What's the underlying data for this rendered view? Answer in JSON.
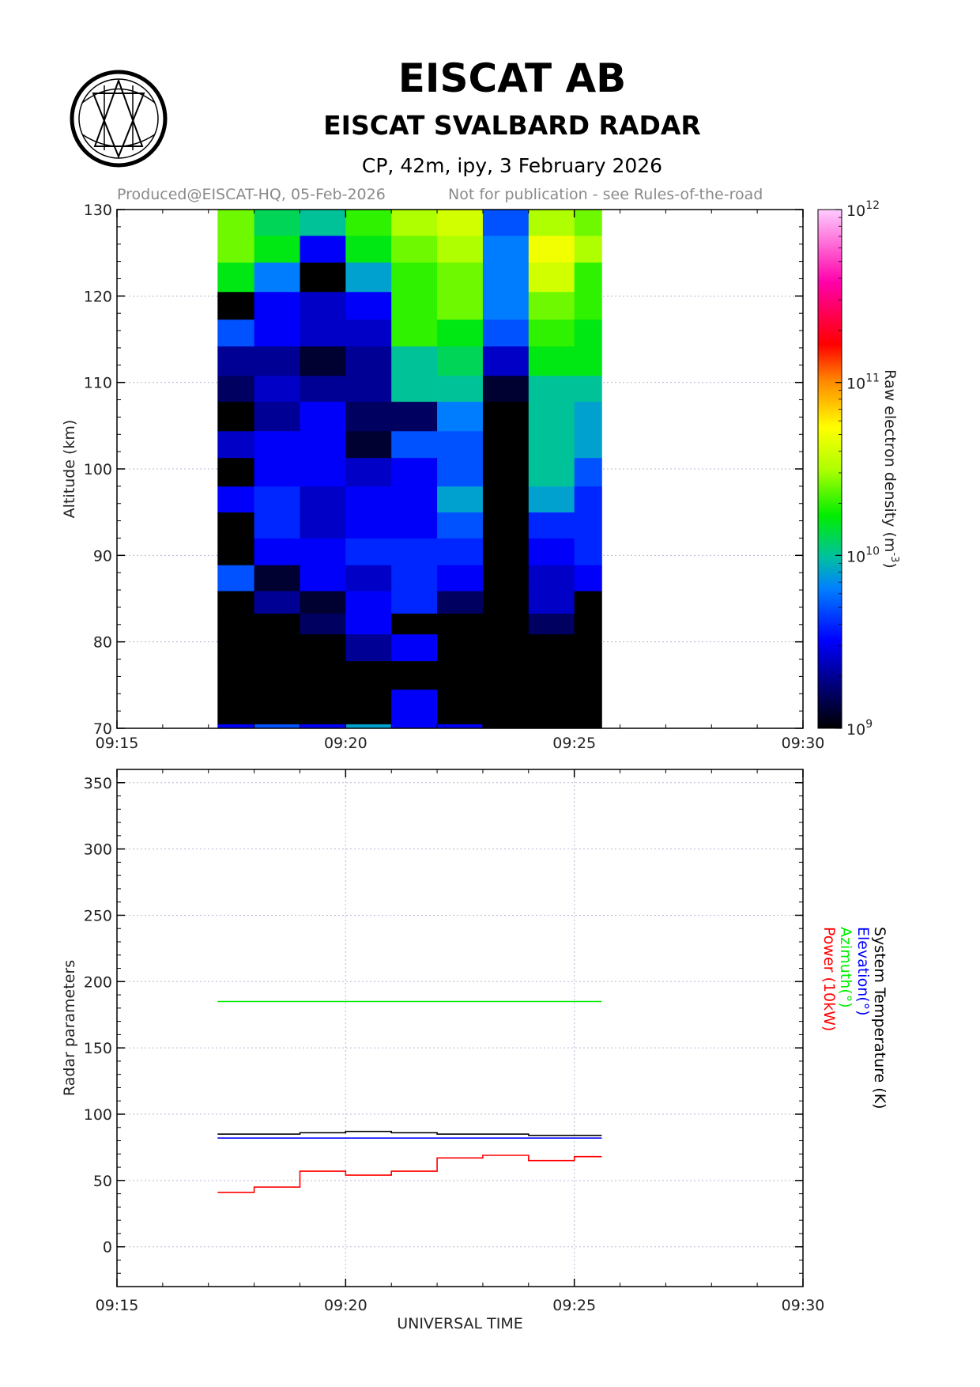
{
  "header": {
    "org": "EISCAT AB",
    "radar": "EISCAT SVALBARD RADAR",
    "subtitle": "CP, 42m, ipy, 3 February 2026",
    "produced": "Produced@EISCAT-HQ, 05-Feb-2026",
    "notice": "Not for publication - see Rules-of-the-road"
  },
  "colors": {
    "frame": "#000000",
    "grid": "#b8b8d8",
    "sys_temp": "#000000",
    "elevation": "#0000ff",
    "azimuth": "#00ee00",
    "power": "#ff0000"
  },
  "chart_data": [
    {
      "type": "heatmap",
      "x_ticks": [
        "09:15",
        "09:20",
        "09:25",
        "09:30"
      ],
      "xlim": [
        "09:15",
        "09:30"
      ],
      "ylabel": "Altitude (km)",
      "ylim": [
        70,
        130
      ],
      "y_ticks": [
        70,
        80,
        90,
        100,
        110,
        120,
        130
      ],
      "colorbar": {
        "label_main": "Raw electron density (m",
        "label_exp": "-3",
        "label_close": ")",
        "scale": "log",
        "range": [
          1000000000.0,
          1000000000000.0
        ],
        "tick_base": "10",
        "tick_exps": [
          "9",
          "10",
          "11",
          "12"
        ],
        "tick_log": [
          9,
          10,
          11,
          12
        ]
      },
      "time_edges": [
        "09:17:12",
        "09:18:00",
        "09:19:00",
        "09:20:00",
        "09:21:00",
        "09:22:00",
        "09:23:00",
        "09:24:00",
        "09:25:00",
        "09:25:36"
      ],
      "altitude_edges_km": [
        70,
        70.5,
        74.5,
        77.8,
        80.9,
        83.3,
        85.9,
        88.9,
        92,
        95,
        98,
        101.3,
        104.4,
        107.8,
        110.8,
        114.2,
        117.3,
        120.5,
        123.9,
        127,
        130
      ],
      "log10_density": [
        [
          9.5,
          9.0,
          9.0,
          9.0,
          9.0,
          9.0,
          9.7,
          9.0,
          9.0,
          9.5,
          9.0,
          9.4,
          9.0,
          9.2,
          9.3,
          9.7,
          9.0,
          10.2,
          10.4,
          10.4
        ],
        [
          9.7,
          9.0,
          9.0,
          9.0,
          9.0,
          9.3,
          9.1,
          9.5,
          9.6,
          9.6,
          9.5,
          9.5,
          9.3,
          9.4,
          9.3,
          9.5,
          9.5,
          9.8,
          10.2,
          10.1
        ],
        [
          9.5,
          9.0,
          9.0,
          9.0,
          9.2,
          9.1,
          9.5,
          9.5,
          9.4,
          9.4,
          9.5,
          9.5,
          9.5,
          9.3,
          9.1,
          9.4,
          9.4,
          9.0,
          9.5,
          10.0
        ],
        [
          9.9,
          9.0,
          9.0,
          9.3,
          9.5,
          9.5,
          9.4,
          9.6,
          9.5,
          9.5,
          9.4,
          9.1,
          9.2,
          9.3,
          9.3,
          9.4,
          9.5,
          9.9,
          10.2,
          10.3
        ],
        [
          9.5,
          9.5,
          9.0,
          9.5,
          9.0,
          9.6,
          9.6,
          9.6,
          9.5,
          9.5,
          9.5,
          9.7,
          9.2,
          10.0,
          10.0,
          10.3,
          10.3,
          10.3,
          10.4,
          10.5
        ],
        [
          9.5,
          9.0,
          9.0,
          9.0,
          9.0,
          9.2,
          9.5,
          9.6,
          9.7,
          9.9,
          9.7,
          9.7,
          9.8,
          10.0,
          10.1,
          10.2,
          10.4,
          10.4,
          10.5,
          10.6
        ],
        [
          9.0,
          9.0,
          9.0,
          9.0,
          9.0,
          9.0,
          9.0,
          9.0,
          9.0,
          9.0,
          9.0,
          9.0,
          9.0,
          9.1,
          9.4,
          9.7,
          9.8,
          9.8,
          9.8,
          9.7
        ],
        [
          9.0,
          9.0,
          9.0,
          9.0,
          9.2,
          9.4,
          9.4,
          9.5,
          9.6,
          9.9,
          10.0,
          10.0,
          10.0,
          10.0,
          10.2,
          10.3,
          10.4,
          10.6,
          10.7,
          10.5
        ],
        [
          9.0,
          9.0,
          9.0,
          9.0,
          9.0,
          9.0,
          9.5,
          9.6,
          9.6,
          9.6,
          9.7,
          9.9,
          9.9,
          10.0,
          10.2,
          10.2,
          10.3,
          10.3,
          10.5,
          10.4
        ]
      ]
    },
    {
      "type": "line",
      "x_ticks": [
        "09:15",
        "09:20",
        "09:25",
        "09:30"
      ],
      "xlim": [
        "09:15",
        "09:30"
      ],
      "xlabel": "UNIVERSAL TIME",
      "ylabel": "Radar parameters",
      "ylim": [
        -30,
        360
      ],
      "y_ticks": [
        0,
        50,
        100,
        150,
        200,
        250,
        300,
        350
      ],
      "grid": true,
      "time_edges": [
        "09:17:12",
        "09:18:00",
        "09:19:00",
        "09:20:00",
        "09:21:00",
        "09:22:00",
        "09:23:00",
        "09:24:00",
        "09:25:00",
        "09:25:36"
      ],
      "series": [
        {
          "name": "System Temperature (K)",
          "values": [
            85,
            85,
            86,
            87,
            86,
            85,
            85,
            84,
            84
          ]
        },
        {
          "name": "Elevation(°)",
          "values": [
            82,
            82,
            82,
            82,
            82,
            82,
            82,
            82,
            82
          ]
        },
        {
          "name": "Azimuth(°)",
          "values": [
            185,
            185,
            185,
            185,
            185,
            185,
            185,
            185,
            185
          ]
        },
        {
          "name": "Power (10kW)",
          "values": [
            41,
            45,
            57,
            54,
            57,
            67,
            69,
            65,
            68
          ]
        }
      ]
    }
  ]
}
